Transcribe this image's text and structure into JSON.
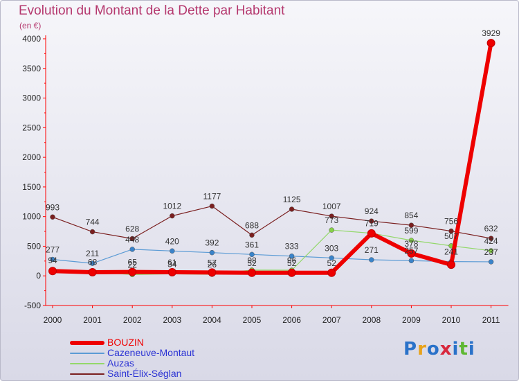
{
  "title": "Evolution du Montant de la Dette par Habitant",
  "unit": "(en €)",
  "logo": {
    "text": "Proxiti",
    "colors": [
      "#2a72c9",
      "#e8a21a",
      "#2a72c9",
      "#d8283d",
      "#2a72c9",
      "#5fb833",
      "#2a72c9"
    ]
  },
  "chart_data": {
    "type": "line",
    "title": "Evolution du Montant de la Dette par Habitant",
    "ylabel": "(en €)",
    "xlabel": "",
    "categories": [
      "2000",
      "2001",
      "2002",
      "2003",
      "2004",
      "2005",
      "2006",
      "2007",
      "2008",
      "2009",
      "2010",
      "2011"
    ],
    "ylim": [
      -500,
      4000
    ],
    "yticks": [
      -500,
      0,
      500,
      1000,
      1500,
      2000,
      2500,
      3000,
      3500,
      4000
    ],
    "grid": false,
    "legend_position": "bottom-left",
    "series": [
      {
        "name": "Saint-Élix-Séglan",
        "color": "#7a1f1f",
        "width": 1.2,
        "marker": "#7a1f1f",
        "values": [
          993,
          744,
          628,
          1012,
          1177,
          688,
          1125,
          1007,
          924,
          854,
          756,
          632
        ],
        "labels": [
          "993",
          "744",
          "628",
          "1012",
          "1177",
          "688",
          "1125",
          "1007",
          "924",
          "854",
          "756",
          "632"
        ]
      },
      {
        "name": "Cazeneuve-Montaut",
        "color": "#5b9bd5",
        "width": 1.2,
        "marker": "#3a83c9",
        "values": [
          277,
          211,
          448,
          420,
          392,
          361,
          333,
          303,
          271,
          257,
          241,
          237
        ],
        "labels": [
          "277",
          "211",
          "448",
          "420",
          "392",
          "361",
          "333",
          "303",
          "271",
          "257",
          "241",
          "237"
        ]
      },
      {
        "name": "Auzas",
        "color": "#93d86a",
        "width": 1.2,
        "marker": "#86d048",
        "values": [
          94,
          68,
          22,
          34,
          26,
          98,
          96,
          773,
          719,
          599,
          507,
          424
        ],
        "labels": [
          "94",
          "68",
          "22",
          "34",
          "26",
          "98",
          "96",
          "773",
          "719",
          "599",
          "507",
          "424"
        ]
      },
      {
        "name": "BOUZIN",
        "color": "#ee0000",
        "width": 6,
        "marker": "#ee0000",
        "values": [
          81,
          61,
          65,
          61,
          57,
          52,
          52,
          52,
          717,
          378,
          188,
          3929
        ],
        "labels": [
          "",
          "",
          "65",
          "61",
          "57",
          "52",
          "52",
          "52",
          "",
          "378",
          "",
          "3929"
        ]
      }
    ]
  },
  "legend": [
    {
      "label": "BOUZIN",
      "color": "#ee0000",
      "text_color": "#ee0000",
      "thickness": 6
    },
    {
      "label": "Cazeneuve-Montaut",
      "color": "#5b9bd5",
      "text_color": "#2b33d4",
      "thickness": 2
    },
    {
      "label": "Auzas",
      "color": "#93d86a",
      "text_color": "#2b33d4",
      "thickness": 2
    },
    {
      "label": "Saint-Élix-Séglan",
      "color": "#7a1f1f",
      "text_color": "#2b33d4",
      "thickness": 2
    }
  ]
}
